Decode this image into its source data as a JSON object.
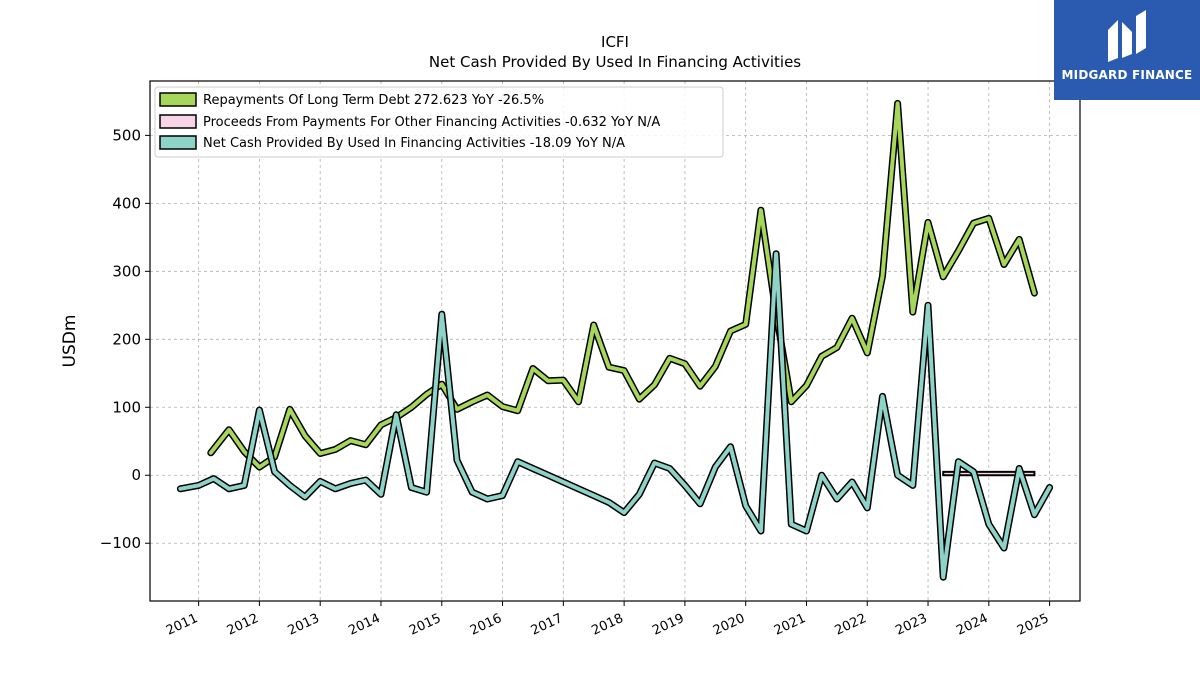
{
  "chart_data": {
    "type": "line",
    "title": "ICFI",
    "subtitle": "Net Cash Provided By Used In Financing Activities",
    "xlabel": "",
    "ylabel": "USDm",
    "xlim": [
      2010.2,
      2025.5
    ],
    "ylim": [
      -185,
      580
    ],
    "x_ticks": [
      "2011",
      "2012",
      "2013",
      "2014",
      "2015",
      "2016",
      "2017",
      "2018",
      "2019",
      "2020",
      "2021",
      "2022",
      "2023",
      "2024",
      "2025"
    ],
    "y_ticks": [
      "−100",
      "0",
      "100",
      "200",
      "300",
      "400",
      "500"
    ],
    "y_tick_values": [
      -100,
      0,
      100,
      200,
      300,
      400,
      500
    ],
    "grid": true,
    "legend_position": "top-left",
    "series": [
      {
        "name": "Repayments Of Long Term Debt  272.623 YoY -26.5%",
        "color": "#a6d75a",
        "kind": "line",
        "points": [
          [
            2011.2,
            33
          ],
          [
            2011.5,
            67
          ],
          [
            2011.75,
            35
          ],
          [
            2012.0,
            12
          ],
          [
            2012.25,
            27
          ],
          [
            2012.5,
            97
          ],
          [
            2012.75,
            58
          ],
          [
            2013.0,
            32
          ],
          [
            2013.25,
            38
          ],
          [
            2013.5,
            51
          ],
          [
            2013.75,
            45
          ],
          [
            2014.0,
            74
          ],
          [
            2014.25,
            85
          ],
          [
            2014.5,
            100
          ],
          [
            2014.75,
            119
          ],
          [
            2015.0,
            134
          ],
          [
            2015.25,
            97
          ],
          [
            2015.5,
            108
          ],
          [
            2015.75,
            118
          ],
          [
            2016.0,
            101
          ],
          [
            2016.25,
            95
          ],
          [
            2016.5,
            157
          ],
          [
            2016.75,
            139
          ],
          [
            2017.0,
            140
          ],
          [
            2017.25,
            108
          ],
          [
            2017.5,
            221
          ],
          [
            2017.75,
            159
          ],
          [
            2018.0,
            154
          ],
          [
            2018.25,
            112
          ],
          [
            2018.5,
            133
          ],
          [
            2018.75,
            172
          ],
          [
            2019.0,
            164
          ],
          [
            2019.25,
            131
          ],
          [
            2019.5,
            160
          ],
          [
            2019.75,
            212
          ],
          [
            2020.0,
            222
          ],
          [
            2020.25,
            390
          ],
          [
            2020.5,
            238
          ],
          [
            2020.75,
            108
          ],
          [
            2021.0,
            132
          ],
          [
            2021.25,
            175
          ],
          [
            2021.5,
            188
          ],
          [
            2021.75,
            231
          ],
          [
            2022.0,
            180
          ],
          [
            2022.25,
            293
          ],
          [
            2022.5,
            547
          ],
          [
            2022.75,
            240
          ],
          [
            2023.0,
            372
          ],
          [
            2023.25,
            292
          ],
          [
            2023.5,
            330
          ],
          [
            2023.75,
            371
          ],
          [
            2024.0,
            378
          ],
          [
            2024.25,
            310
          ],
          [
            2024.5,
            347
          ],
          [
            2024.75,
            268
          ]
        ]
      },
      {
        "name": "Proceeds From Payments For Other Financing Activities  -0.632 YoY N/A",
        "color": "#f7d4e6",
        "kind": "band",
        "points": [
          [
            2023.25,
            5
          ],
          [
            2023.5,
            5
          ],
          [
            2023.75,
            5
          ],
          [
            2024.0,
            5
          ],
          [
            2024.25,
            5
          ],
          [
            2024.5,
            5
          ],
          [
            2024.75,
            5
          ]
        ]
      },
      {
        "name": "Net Cash Provided By Used In Financing Activities  -18.09 YoY N/A",
        "color": "#8ed3c8",
        "kind": "line",
        "points": [
          [
            2010.7,
            -20
          ],
          [
            2011.0,
            -15
          ],
          [
            2011.25,
            -5
          ],
          [
            2011.5,
            -20
          ],
          [
            2011.75,
            -15
          ],
          [
            2012.0,
            96
          ],
          [
            2012.25,
            5
          ],
          [
            2012.5,
            -15
          ],
          [
            2012.75,
            -32
          ],
          [
            2013.0,
            -9
          ],
          [
            2013.25,
            -20
          ],
          [
            2013.5,
            -12
          ],
          [
            2013.75,
            -7
          ],
          [
            2014.0,
            -28
          ],
          [
            2014.25,
            89
          ],
          [
            2014.5,
            -18
          ],
          [
            2014.75,
            -25
          ],
          [
            2015.0,
            237
          ],
          [
            2015.25,
            22
          ],
          [
            2015.5,
            -25
          ],
          [
            2015.75,
            -35
          ],
          [
            2016.0,
            -30
          ],
          [
            2016.25,
            20
          ],
          [
            2016.5,
            10
          ],
          [
            2016.75,
            0
          ],
          [
            2017.0,
            -10
          ],
          [
            2017.25,
            -20
          ],
          [
            2017.5,
            -30
          ],
          [
            2017.75,
            -40
          ],
          [
            2018.0,
            -55
          ],
          [
            2018.25,
            -28
          ],
          [
            2018.5,
            18
          ],
          [
            2018.75,
            10
          ],
          [
            2019.0,
            -15
          ],
          [
            2019.25,
            -42
          ],
          [
            2019.5,
            12
          ],
          [
            2019.75,
            42
          ],
          [
            2020.0,
            -45
          ],
          [
            2020.25,
            -82
          ],
          [
            2020.5,
            326
          ],
          [
            2020.75,
            -72
          ],
          [
            2021.0,
            -82
          ],
          [
            2021.25,
            0
          ],
          [
            2021.5,
            -35
          ],
          [
            2021.75,
            -10
          ],
          [
            2022.0,
            -48
          ],
          [
            2022.25,
            116
          ],
          [
            2022.5,
            0
          ],
          [
            2022.75,
            -15
          ],
          [
            2023.0,
            250
          ],
          [
            2023.25,
            -150
          ],
          [
            2023.5,
            20
          ],
          [
            2023.75,
            5
          ],
          [
            2024.0,
            -72
          ],
          [
            2024.25,
            -107
          ],
          [
            2024.5,
            10
          ],
          [
            2024.75,
            -58
          ],
          [
            2025.0,
            -18
          ]
        ]
      }
    ]
  },
  "logo": {
    "text": "MIDGARD FINANCE",
    "background": "#2a5bb0"
  }
}
